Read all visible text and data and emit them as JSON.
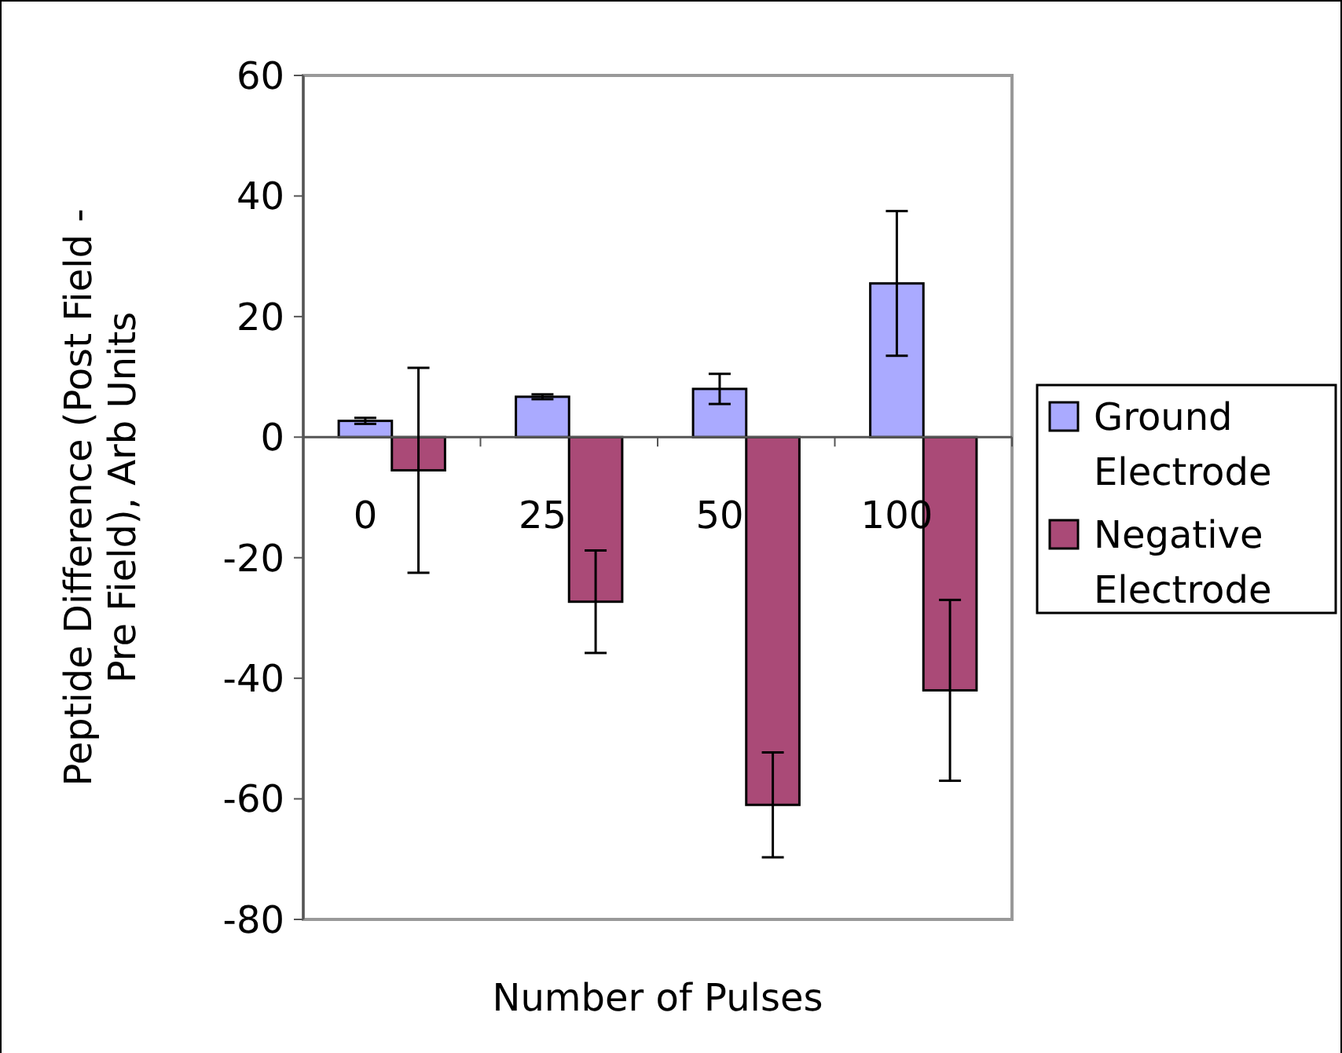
{
  "chart_data": {
    "type": "bar",
    "xlabel": "Number of Pulses",
    "ylabel": "Peptide Difference  (Post Field - Pre Field), Arb Units",
    "categories": [
      "0",
      "25",
      "50",
      "100"
    ],
    "series": [
      {
        "name": "Ground Electrode",
        "color": "#aaaaff",
        "values": [
          2.7,
          6.7,
          8,
          25.5
        ],
        "errors": [
          0.5,
          0.4,
          2.5,
          12
        ]
      },
      {
        "name": "Negative Electrode",
        "color": "#aa4a77",
        "values": [
          -5.5,
          -27.3,
          -61,
          -42
        ],
        "errors": [
          17,
          8.5,
          8.7,
          15
        ]
      }
    ],
    "ylim": [
      -80,
      60
    ],
    "yticks": [
      -80,
      -60,
      -40,
      -20,
      0,
      20,
      40,
      60
    ],
    "grid": false,
    "legend": "right"
  }
}
